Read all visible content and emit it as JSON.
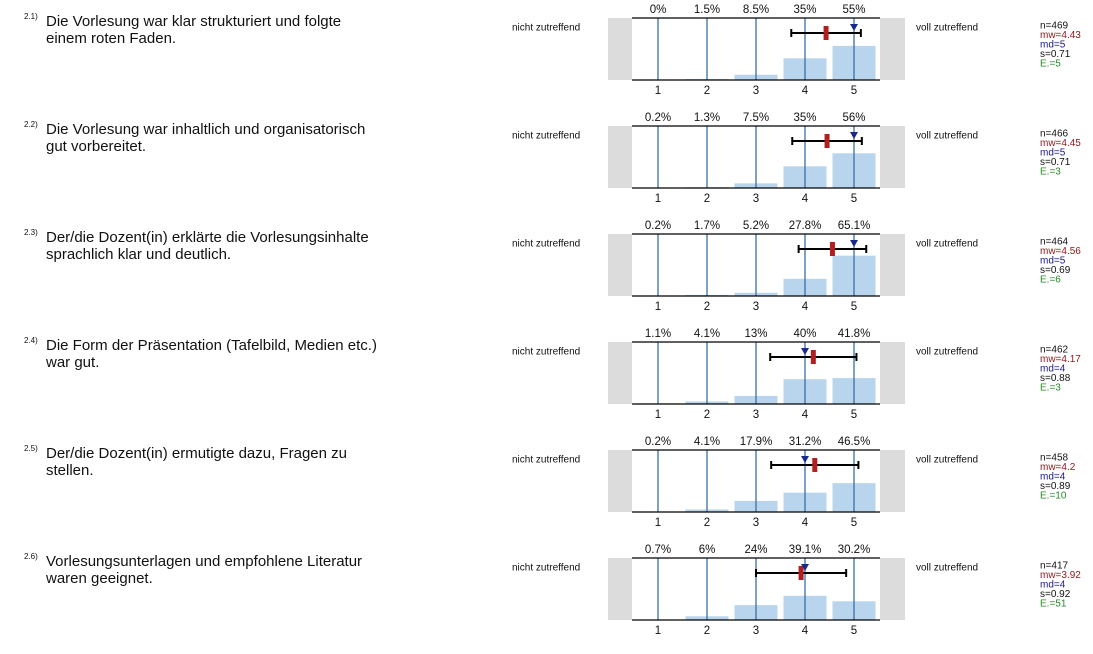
{
  "scale": {
    "left": "nicht zutreffend",
    "right": "voll zutreffend",
    "ticks": [
      1,
      2,
      3,
      4,
      5
    ]
  },
  "items": [
    {
      "number": "2.1)",
      "lines": [
        "Die Vorlesung war klar strukturiert und folgte",
        "einem roten Faden."
      ],
      "percents": [
        0,
        1.5,
        8.5,
        35,
        55
      ],
      "percent_labels": [
        "0%",
        "1.5%",
        "8.5%",
        "35%",
        "55%"
      ],
      "mean": 4.43,
      "sd": 0.71,
      "median": 5,
      "stats": {
        "n": "n=469",
        "mw": "mw=4.43",
        "md": "md=5",
        "s": "s=0.71",
        "e": "E.=5"
      }
    },
    {
      "number": "2.2)",
      "lines": [
        "Die Vorlesung war inhaltlich und organisatorisch",
        "gut vorbereitet."
      ],
      "percents": [
        0.2,
        1.3,
        7.5,
        35,
        56
      ],
      "percent_labels": [
        "0.2%",
        "1.3%",
        "7.5%",
        "35%",
        "56%"
      ],
      "mean": 4.45,
      "sd": 0.71,
      "median": 5,
      "stats": {
        "n": "n=466",
        "mw": "mw=4.45",
        "md": "md=5",
        "s": "s=0.71",
        "e": "E.=3"
      }
    },
    {
      "number": "2.3)",
      "lines": [
        "Der/die Dozent(in) erklärte die Vorlesungsinhalte",
        "sprachlich klar und deutlich."
      ],
      "percents": [
        0.2,
        1.7,
        5.2,
        27.8,
        65.1
      ],
      "percent_labels": [
        "0.2%",
        "1.7%",
        "5.2%",
        "27.8%",
        "65.1%"
      ],
      "mean": 4.56,
      "sd": 0.69,
      "median": 5,
      "stats": {
        "n": "n=464",
        "mw": "mw=4.56",
        "md": "md=5",
        "s": "s=0.69",
        "e": "E.=6"
      }
    },
    {
      "number": "2.4)",
      "lines": [
        "Die Form der Präsentation (Tafelbild, Medien etc.)",
        "war gut."
      ],
      "percents": [
        1.1,
        4.1,
        13,
        40,
        41.8
      ],
      "percent_labels": [
        "1.1%",
        "4.1%",
        "13%",
        "40%",
        "41.8%"
      ],
      "mean": 4.17,
      "sd": 0.88,
      "median": 4,
      "stats": {
        "n": "n=462",
        "mw": "mw=4.17",
        "md": "md=4",
        "s": "s=0.88",
        "e": "E.=3"
      }
    },
    {
      "number": "2.5)",
      "lines": [
        "Der/die Dozent(in) ermutigte dazu, Fragen zu",
        "stellen."
      ],
      "percents": [
        0.2,
        4.1,
        17.9,
        31.2,
        46.5
      ],
      "percent_labels": [
        "0.2%",
        "4.1%",
        "17.9%",
        "31.2%",
        "46.5%"
      ],
      "mean": 4.2,
      "sd": 0.89,
      "median": 4,
      "stats": {
        "n": "n=458",
        "mw": "mw=4.2",
        "md": "md=4",
        "s": "s=0.89",
        "e": "E.=10"
      }
    },
    {
      "number": "2.6)",
      "lines": [
        "Vorlesungsunterlagen und empfohlene Literatur",
        "waren geeignet."
      ],
      "percents": [
        0.7,
        6,
        24,
        39.1,
        30.2
      ],
      "percent_labels": [
        "0.7%",
        "6%",
        "24%",
        "39.1%",
        "30.2%"
      ],
      "mean": 3.92,
      "sd": 0.92,
      "median": 4,
      "stats": {
        "n": "n=417",
        "mw": "mw=3.92",
        "md": "md=4",
        "s": "s=0.92",
        "e": "E.=51"
      }
    }
  ]
}
